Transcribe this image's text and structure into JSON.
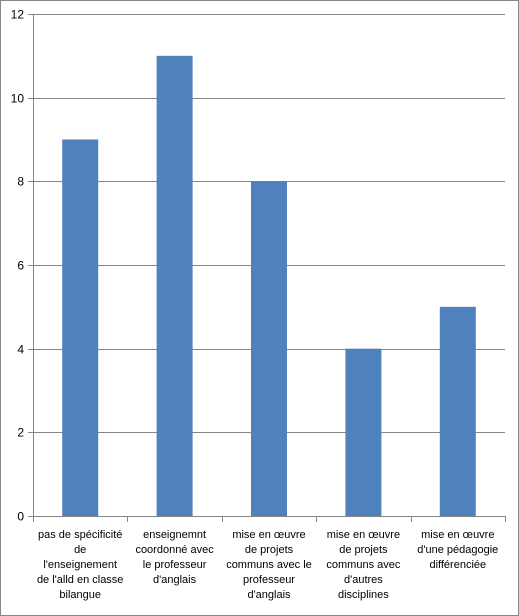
{
  "chart_data": {
    "type": "bar",
    "title": "",
    "xlabel": "",
    "ylabel": "",
    "categories": [
      "pas de spécificité de l'enseignement de l'alld en classe bilangue",
      "enseignemnt coordonné avec le professeur d'anglais",
      "mise en œuvre de projets communs avec le professeur d'anglais",
      "mise en œuvre de projets communs avec d'autres disciplines",
      "mise en œuvre d'une pédagogie différenciée"
    ],
    "values": [
      9,
      11,
      8,
      4,
      5
    ],
    "ylim": [
      0,
      12
    ],
    "yticks": [
      "0",
      "2",
      "4",
      "6",
      "8",
      "10",
      "12"
    ],
    "grid": true,
    "legend": "none",
    "bar_color": "#4F81BD",
    "grid_color": "#868686"
  }
}
